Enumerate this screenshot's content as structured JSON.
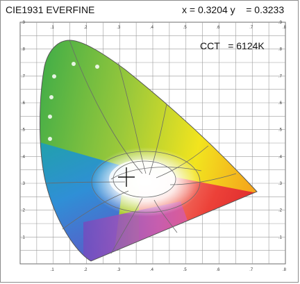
{
  "header": {
    "title": "CIE1931  EVERFINE",
    "x_text": "x = 0.3204",
    "y_text": "y    = 0.3233"
  },
  "cct": {
    "label": "CCT",
    "value_text": "= 6124K"
  },
  "chart_data": {
    "type": "scatter",
    "title": "CIE1931  EVERFINE",
    "xlabel": "",
    "ylabel": "",
    "xlim": [
      0,
      0.8
    ],
    "ylim": [
      0,
      0.9
    ],
    "x_ticks": [
      ".1",
      ".2",
      ".3",
      ".4",
      ".5",
      ".6",
      ".7",
      ".8"
    ],
    "y_ticks": [
      ".1",
      ".2",
      ".3",
      ".4",
      ".5",
      ".6",
      ".7",
      ".8",
      ".9"
    ],
    "grid": true,
    "series": [
      {
        "values": [
          {
            "x": 0.3204,
            "y": 0.3233
          }
        ]
      }
    ],
    "annotations": [
      "CCT = 6124K"
    ],
    "colors": {
      "green": "#3fae3a",
      "yellow": "#f1e51d",
      "red": "#e5242c",
      "blue": "#2a7fd0",
      "violet": "#8a3ea0",
      "white_point": "#ffffff"
    }
  }
}
